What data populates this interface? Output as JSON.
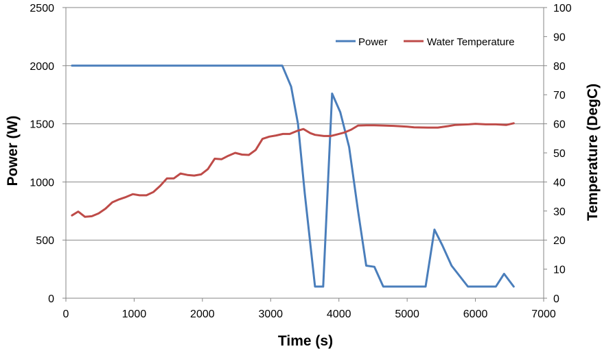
{
  "chart_data": {
    "type": "line",
    "title": "",
    "xlabel": "Time (s)",
    "ylabel": "Power (W)",
    "y2label": "Temperature (DegC)",
    "xlim": [
      0,
      7000
    ],
    "ylim": [
      0,
      2500
    ],
    "y2lim": [
      0,
      100
    ],
    "x_ticks": [
      0,
      1000,
      2000,
      3000,
      4000,
      5000,
      6000,
      7000
    ],
    "y_ticks": [
      0,
      500,
      1000,
      1500,
      2000,
      2500
    ],
    "y2_ticks": [
      0,
      10,
      20,
      30,
      40,
      50,
      60,
      70,
      80,
      90,
      100
    ],
    "grid": "horizontal major gridlines",
    "legend_position": "top-right",
    "series": [
      {
        "name": "Power",
        "axis": "left",
        "color": "#4A7EBB",
        "x": [
          90,
          3170,
          3300,
          3400,
          3500,
          3650,
          3770,
          3900,
          4020,
          4150,
          4280,
          4400,
          4520,
          4650,
          5270,
          5400,
          5520,
          5650,
          5890,
          6300,
          6420,
          6560
        ],
        "y": [
          2000,
          2000,
          1820,
          1500,
          900,
          100,
          100,
          1760,
          1600,
          1300,
          750,
          280,
          270,
          100,
          100,
          590,
          450,
          280,
          100,
          100,
          210,
          100
        ]
      },
      {
        "name": "Water Temperature",
        "axis": "right",
        "color": "#BE4B48",
        "x": [
          90,
          180,
          280,
          380,
          480,
          580,
          680,
          780,
          880,
          980,
          1080,
          1180,
          1280,
          1380,
          1480,
          1580,
          1680,
          1780,
          1880,
          1980,
          2080,
          2180,
          2280,
          2380,
          2480,
          2580,
          2680,
          2780,
          2880,
          2980,
          3080,
          3180,
          3280,
          3380,
          3480,
          3580,
          3650,
          3780,
          3880,
          3980,
          4080,
          4180,
          4280,
          4400,
          4520,
          4650,
          4800,
          5000,
          5100,
          5300,
          5450,
          5600,
          5700,
          5900,
          6000,
          6150,
          6300,
          6450,
          6560
        ],
        "y": [
          28.5,
          29.8,
          28.0,
          28.2,
          29.2,
          30.8,
          33.0,
          34.0,
          34.8,
          35.8,
          35.4,
          35.4,
          36.5,
          38.6,
          41.2,
          41.2,
          42.9,
          42.4,
          42.2,
          42.6,
          44.4,
          48.0,
          47.8,
          49.0,
          50.0,
          49.4,
          49.3,
          51.0,
          54.8,
          55.6,
          56.0,
          56.5,
          56.5,
          57.5,
          58.2,
          56.8,
          56.2,
          55.8,
          55.8,
          56.4,
          57.0,
          58.0,
          59.4,
          59.5,
          59.5,
          59.4,
          59.3,
          59.0,
          58.8,
          58.7,
          58.7,
          59.2,
          59.6,
          59.8,
          60.0,
          59.8,
          59.8,
          59.6,
          60.2
        ]
      }
    ]
  }
}
